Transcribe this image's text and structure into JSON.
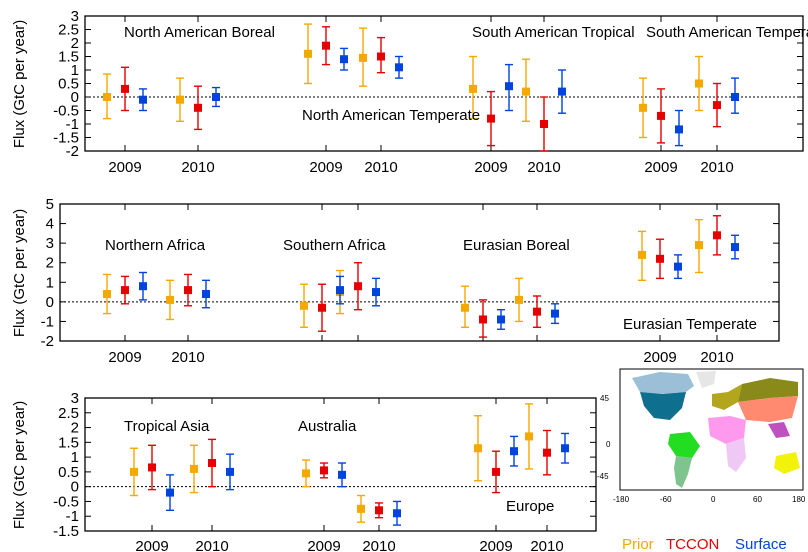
{
  "chart_data": [
    {
      "type": "scatter",
      "ylabel": "Flux (GtC per year)",
      "ylim": [
        -2,
        3
      ],
      "yticks": [
        "3",
        "2.5",
        "2",
        "1.5",
        "1",
        "0.5",
        "0",
        "-0.5",
        "-1",
        "-1.5",
        "-2"
      ],
      "year_labels": [
        "2009",
        "2010",
        "2009",
        "2010",
        "2009",
        "2010",
        "2009",
        "2010"
      ],
      "regions": [
        "North American Boreal",
        "North American Temperate",
        "South American Tropical",
        "South American Temperate"
      ],
      "series": [
        {
          "name": "Prior",
          "values": [
            0.0,
            -0.1,
            1.6,
            1.45,
            0.3,
            0.2,
            -0.4,
            0.5
          ],
          "low": [
            -0.8,
            -0.9,
            0.5,
            0.4,
            -0.8,
            -0.9,
            -1.5,
            -0.5
          ],
          "high": [
            0.85,
            0.7,
            2.7,
            2.55,
            1.5,
            1.4,
            0.7,
            1.5
          ]
        },
        {
          "name": "TCCON",
          "values": [
            0.3,
            -0.4,
            1.9,
            1.5,
            -0.8,
            -1.0,
            -0.7,
            -0.3
          ],
          "low": [
            -0.5,
            -1.2,
            1.2,
            0.9,
            -1.8,
            -2.0,
            -1.7,
            -1.1
          ],
          "high": [
            1.1,
            0.4,
            2.6,
            2.2,
            0.2,
            0.0,
            0.3,
            0.5
          ]
        },
        {
          "name": "Surface",
          "values": [
            -0.1,
            0.0,
            1.4,
            1.1,
            0.4,
            0.2,
            -1.2,
            0.0
          ],
          "low": [
            -0.5,
            -0.35,
            1.0,
            0.7,
            -0.5,
            -0.6,
            -1.8,
            -0.6
          ],
          "high": [
            0.3,
            0.35,
            1.8,
            1.5,
            1.2,
            1.0,
            -0.5,
            0.7
          ]
        }
      ]
    },
    {
      "type": "scatter",
      "ylabel": "Flux (GtC per year)",
      "ylim": [
        -2,
        5
      ],
      "yticks": [
        "5",
        "4",
        "3",
        "2",
        "1",
        "0",
        "-1",
        "-2"
      ],
      "year_labels": [
        "2009",
        "2010",
        "",
        "",
        "",
        "",
        "2009",
        "2010"
      ],
      "regions": [
        "Northern Africa",
        "Southern Africa",
        "Eurasian Boreal",
        "Eurasian Temperate"
      ],
      "series": [
        {
          "name": "Prior",
          "values": [
            0.4,
            0.1,
            -0.2,
            0.5,
            -0.3,
            0.1,
            2.4,
            2.9
          ],
          "low": [
            -0.6,
            -0.9,
            -1.3,
            -0.6,
            -1.3,
            -1.0,
            1.1,
            1.5
          ],
          "high": [
            1.4,
            1.1,
            0.9,
            1.6,
            0.8,
            1.2,
            3.6,
            4.2
          ]
        },
        {
          "name": "TCCON",
          "values": [
            0.6,
            0.6,
            -0.3,
            0.8,
            -0.9,
            -0.5,
            2.2,
            3.4
          ],
          "low": [
            -0.1,
            -0.2,
            -1.5,
            -0.4,
            -1.8,
            -1.3,
            1.2,
            2.4
          ],
          "high": [
            1.3,
            1.4,
            0.9,
            2.0,
            0.1,
            0.3,
            3.2,
            4.4
          ]
        },
        {
          "name": "Surface",
          "values": [
            0.8,
            0.4,
            0.6,
            0.5,
            -0.9,
            -0.6,
            1.8,
            2.8
          ],
          "low": [
            0.1,
            -0.3,
            -0.1,
            -0.2,
            -1.4,
            -1.1,
            1.2,
            2.2
          ],
          "high": [
            1.5,
            1.1,
            1.3,
            1.2,
            -0.4,
            -0.1,
            2.4,
            3.4
          ]
        }
      ]
    },
    {
      "type": "scatter",
      "ylabel": "Flux (GtC per year)",
      "ylim": [
        -1.5,
        3
      ],
      "yticks": [
        "3",
        "2.5",
        "2",
        "1.5",
        "1",
        "0.5",
        "0",
        "-0.5",
        "-1",
        "-1.5"
      ],
      "year_labels": [
        "2009",
        "2010",
        "2009",
        "2010",
        "2009",
        "2010"
      ],
      "regions": [
        "Tropical Asia",
        "Australia",
        "Europe"
      ],
      "series": [
        {
          "name": "Prior",
          "values": [
            0.5,
            0.6,
            0.45,
            -0.75,
            1.3,
            1.7
          ],
          "low": [
            -0.3,
            -0.2,
            0.0,
            -1.2,
            0.2,
            0.6
          ],
          "high": [
            1.3,
            1.4,
            0.9,
            -0.3,
            2.4,
            2.8
          ]
        },
        {
          "name": "TCCON",
          "values": [
            0.65,
            0.8,
            0.55,
            -0.8,
            0.5,
            1.15
          ],
          "low": [
            -0.1,
            0.0,
            0.3,
            -1.05,
            -0.2,
            0.4
          ],
          "high": [
            1.4,
            1.6,
            0.8,
            -0.55,
            1.2,
            1.9
          ]
        },
        {
          "name": "Surface",
          "values": [
            -0.2,
            0.5,
            0.4,
            -0.9,
            1.2,
            1.3
          ],
          "low": [
            -0.8,
            -0.1,
            0.0,
            -1.3,
            0.7,
            0.8
          ],
          "high": [
            0.4,
            1.1,
            0.8,
            -0.5,
            1.7,
            1.8
          ]
        }
      ]
    }
  ],
  "legend": {
    "items": [
      "Prior",
      "TCCON",
      "Surface"
    ],
    "colors": [
      "#f5a800",
      "#e60000",
      "#0044dd"
    ],
    "placement": "bottom-right"
  },
  "map": {
    "type": "map",
    "yticks": [
      "45",
      "0",
      "-45"
    ],
    "xticks": [
      "-180",
      "-60",
      "0",
      "60",
      "180"
    ]
  }
}
